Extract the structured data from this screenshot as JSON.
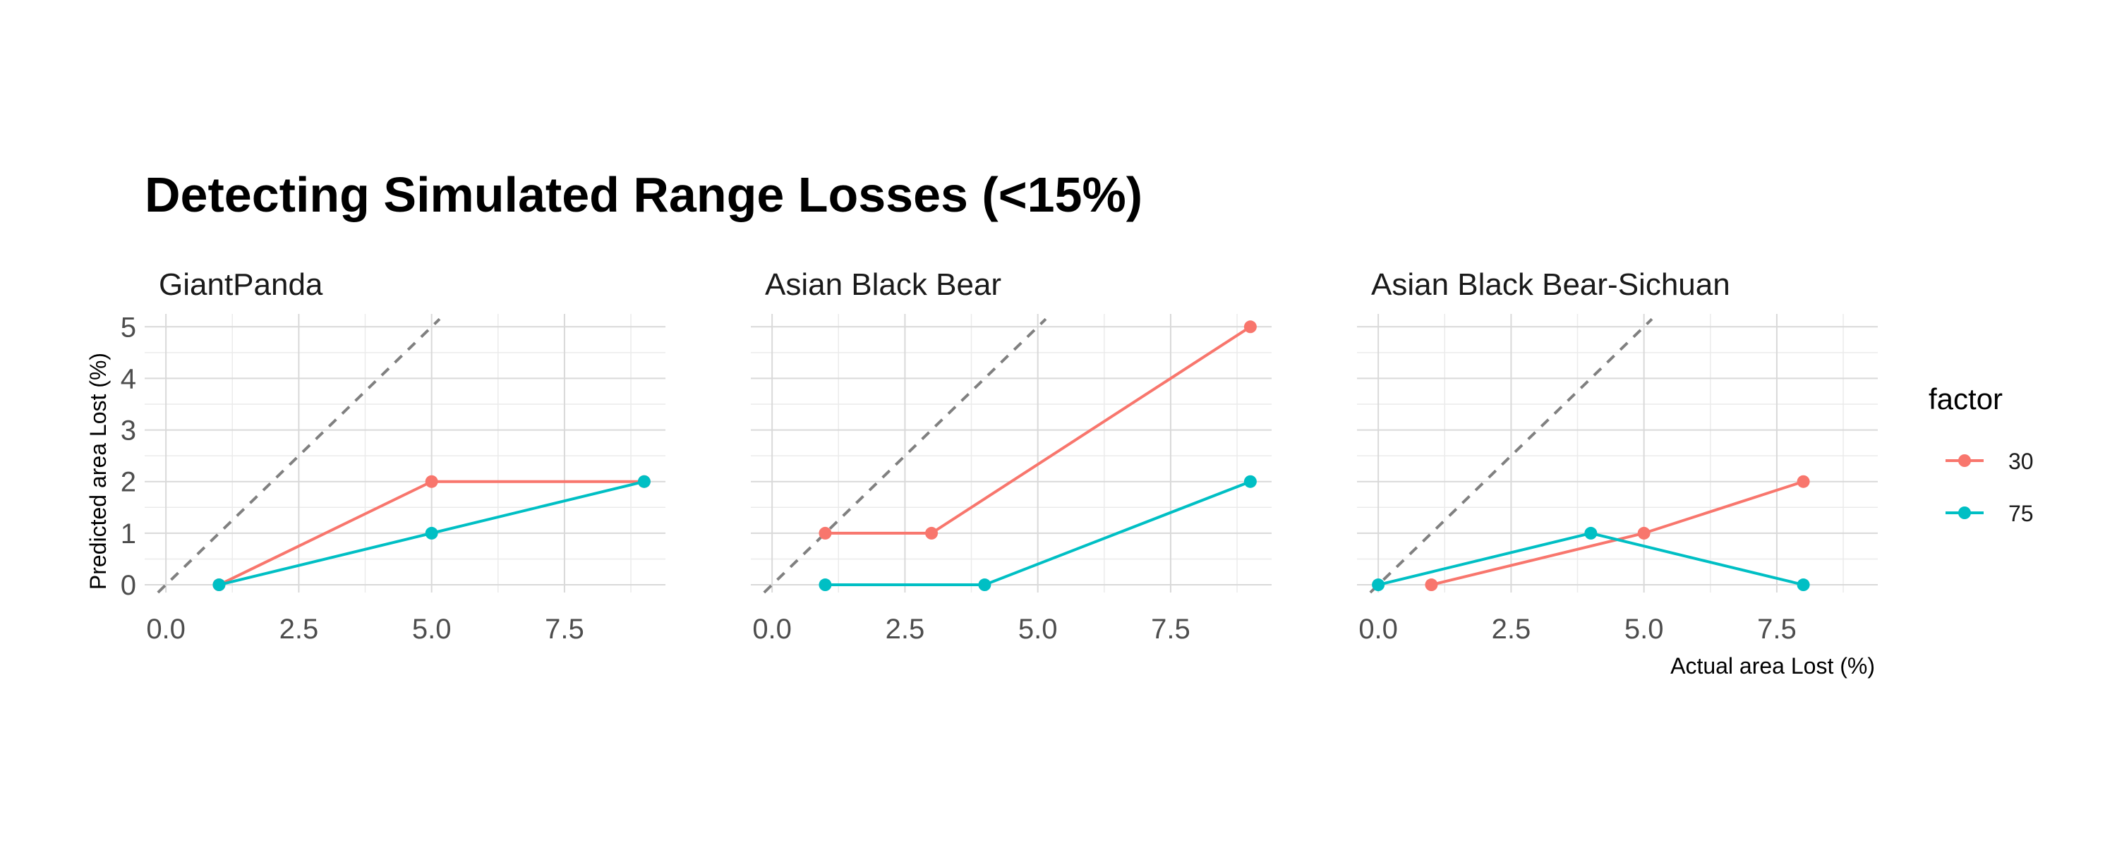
{
  "chart_data": {
    "type": "line",
    "title": "Detecting Simulated Range Losses (<15%)",
    "xlabel": "Actual area Lost (%)",
    "ylabel": "Predicted area Lost (%)",
    "xlim": [
      -0.4,
      9.4
    ],
    "ylim": [
      -0.15,
      5.25
    ],
    "x_ticks": [
      0,
      2.5,
      5,
      7.5
    ],
    "x_tick_labels": [
      "0.0",
      "2.5",
      "5.0",
      "7.5"
    ],
    "y_ticks": [
      0,
      1,
      2,
      3,
      4,
      5
    ],
    "y_tick_labels": [
      "0",
      "1",
      "2",
      "3",
      "4",
      "5"
    ],
    "grid": true,
    "reference_line": "y = x (dashed)",
    "legend": {
      "title": "factor",
      "placement": "right",
      "entries": [
        {
          "name": "30",
          "color": "#F8766D"
        },
        {
          "name": "75",
          "color": "#00BFC4"
        }
      ]
    },
    "panels": [
      {
        "title": "GiantPanda",
        "series": [
          {
            "name": "30",
            "x": [
              1,
              5,
              9
            ],
            "y": [
              0,
              2,
              2
            ]
          },
          {
            "name": "75",
            "x": [
              1,
              5,
              9
            ],
            "y": [
              0,
              1,
              2
            ]
          }
        ]
      },
      {
        "title": "Asian Black Bear",
        "series": [
          {
            "name": "30",
            "x": [
              1,
              3,
              9
            ],
            "y": [
              1,
              1,
              5
            ]
          },
          {
            "name": "75",
            "x": [
              1,
              4,
              9
            ],
            "y": [
              0,
              0,
              2
            ]
          }
        ]
      },
      {
        "title": "Asian Black Bear-Sichuan",
        "series": [
          {
            "name": "30",
            "x": [
              1,
              5,
              8
            ],
            "y": [
              0,
              1,
              2
            ]
          },
          {
            "name": "75",
            "x": [
              0,
              4,
              8
            ],
            "y": [
              0,
              1,
              0
            ]
          }
        ]
      }
    ]
  }
}
